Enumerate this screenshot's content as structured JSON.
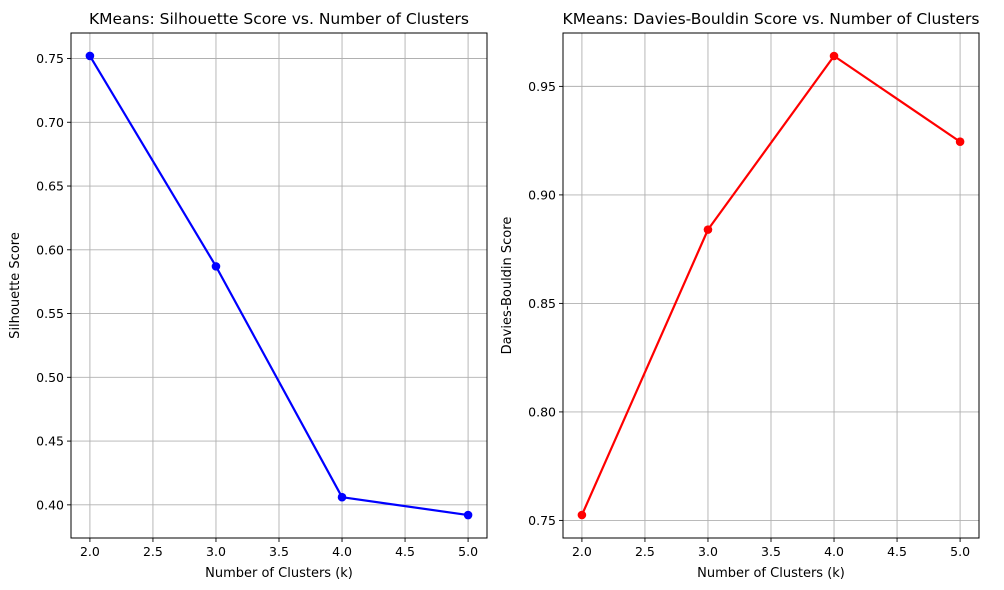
{
  "chart_data": [
    {
      "type": "line",
      "title": "KMeans: Silhouette Score vs. Number of Clusters",
      "xlabel": "Number of Clusters (k)",
      "ylabel": "Silhouette Score",
      "x": [
        2,
        3,
        4,
        5
      ],
      "series": [
        {
          "values": [
            0.752,
            0.587,
            0.406,
            0.392
          ],
          "color": "#0000ff",
          "marker": "circle"
        }
      ],
      "xlim": [
        1.85,
        5.15
      ],
      "ylim": [
        0.374,
        0.77
      ],
      "xticks": [
        2.0,
        2.5,
        3.0,
        3.5,
        4.0,
        4.5,
        5.0
      ],
      "xtick_labels": [
        "2.0",
        "2.5",
        "3.0",
        "3.5",
        "4.0",
        "4.5",
        "5.0"
      ],
      "yticks": [
        0.4,
        0.45,
        0.5,
        0.55,
        0.6,
        0.65,
        0.7,
        0.75
      ],
      "ytick_labels": [
        "0.40",
        "0.45",
        "0.50",
        "0.55",
        "0.60",
        "0.65",
        "0.70",
        "0.75"
      ],
      "grid": true
    },
    {
      "type": "line",
      "title": "KMeans: Davies-Bouldin Score vs. Number of Clusters",
      "xlabel": "Number of Clusters (k)",
      "ylabel": "Davies-Bouldin Score",
      "x": [
        2,
        3,
        4,
        5
      ],
      "series": [
        {
          "values": [
            0.7525,
            0.884,
            0.964,
            0.9245
          ],
          "color": "#ff0000",
          "marker": "circle"
        }
      ],
      "xlim": [
        1.85,
        5.15
      ],
      "ylim": [
        0.7419,
        0.9746
      ],
      "xticks": [
        2.0,
        2.5,
        3.0,
        3.5,
        4.0,
        4.5,
        5.0
      ],
      "xtick_labels": [
        "2.0",
        "2.5",
        "3.0",
        "3.5",
        "4.0",
        "4.5",
        "5.0"
      ],
      "yticks": [
        0.75,
        0.8,
        0.85,
        0.9,
        0.95
      ],
      "ytick_labels": [
        "0.75",
        "0.80",
        "0.85",
        "0.90",
        "0.95"
      ],
      "grid": true
    }
  ],
  "colors": {
    "grid": "#b0b0b0",
    "axes": "#000000",
    "background": "#ffffff"
  }
}
